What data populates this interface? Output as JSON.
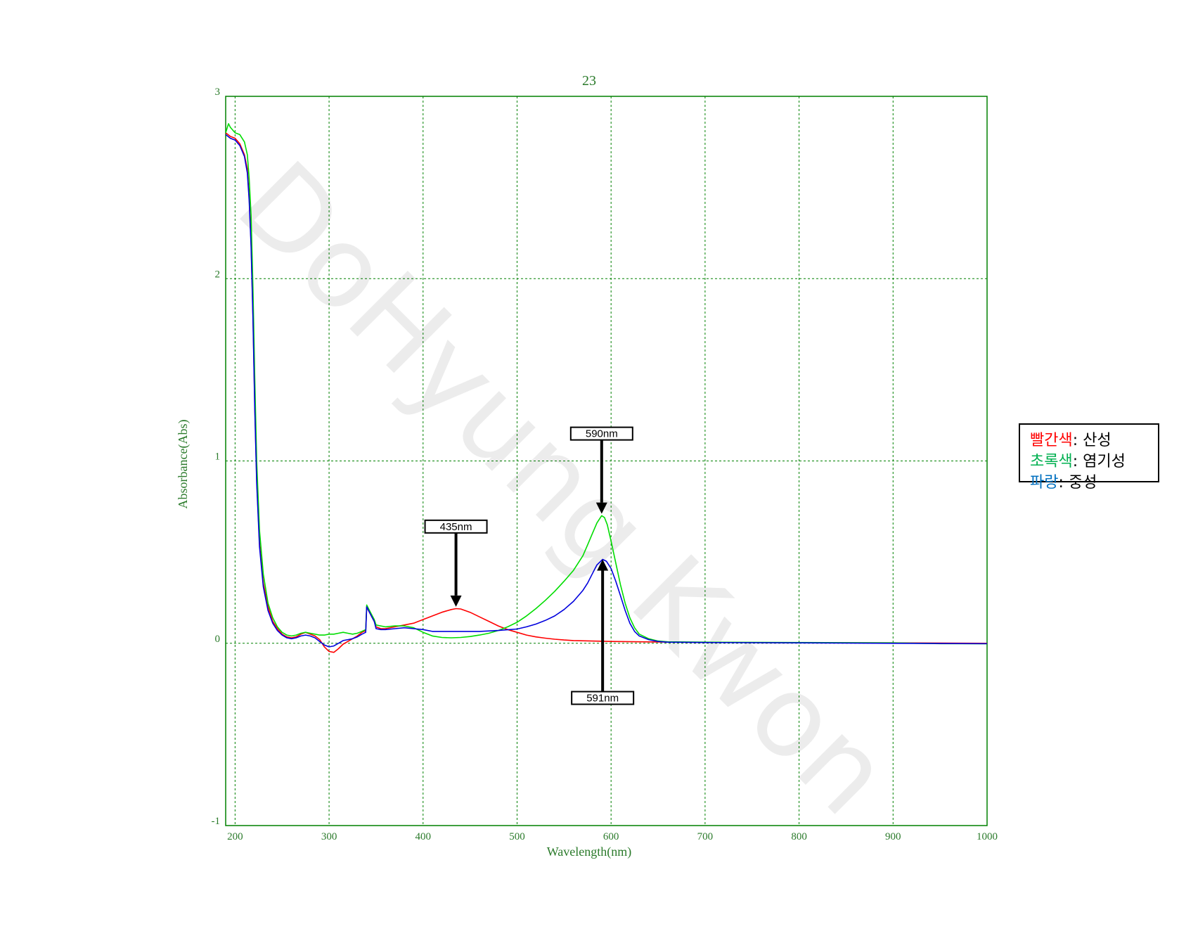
{
  "watermark": "DoHyung Kwon",
  "legend": [
    {
      "label": "빨간색",
      "desc": ": 산성",
      "color": "#ff0000"
    },
    {
      "label": "초록색",
      "desc": ": 염기성",
      "color": "#00b050"
    },
    {
      "label": "파랑",
      "desc": ": 중성",
      "color": "#0070c0"
    }
  ],
  "chart_data": {
    "type": "line",
    "title": "23",
    "xlabel": "Wavelength(nm)",
    "ylabel": "Absorbance(Abs)",
    "xlim": [
      190,
      1000
    ],
    "ylim": [
      -1,
      3
    ],
    "xticks": [
      200,
      300,
      400,
      500,
      600,
      700,
      800,
      900,
      1000
    ],
    "yticks": [
      -1,
      0,
      1,
      2,
      3
    ],
    "grid": true,
    "series": [
      {
        "color": "#ff0000",
        "points": [
          [
            190,
            2.8
          ],
          [
            195,
            2.78
          ],
          [
            200,
            2.77
          ],
          [
            205,
            2.74
          ],
          [
            210,
            2.68
          ],
          [
            213,
            2.6
          ],
          [
            215,
            2.45
          ],
          [
            217,
            2.2
          ],
          [
            219,
            1.8
          ],
          [
            221,
            1.3
          ],
          [
            223,
            0.9
          ],
          [
            226,
            0.55
          ],
          [
            230,
            0.33
          ],
          [
            235,
            0.2
          ],
          [
            240,
            0.12
          ],
          [
            245,
            0.08
          ],
          [
            250,
            0.05
          ],
          [
            255,
            0.035
          ],
          [
            260,
            0.03
          ],
          [
            265,
            0.035
          ],
          [
            270,
            0.05
          ],
          [
            275,
            0.06
          ],
          [
            280,
            0.05
          ],
          [
            285,
            0.04
          ],
          [
            290,
            0.02
          ],
          [
            295,
            -0.02
          ],
          [
            300,
            -0.045
          ],
          [
            305,
            -0.05
          ],
          [
            310,
            -0.03
          ],
          [
            315,
            -0.005
          ],
          [
            320,
            0.01
          ],
          [
            325,
            0.025
          ],
          [
            330,
            0.04
          ],
          [
            335,
            0.06
          ],
          [
            339,
            0.07
          ],
          [
            340,
            0.2
          ],
          [
            342,
            0.18
          ],
          [
            345,
            0.15
          ],
          [
            348,
            0.12
          ],
          [
            350,
            0.09
          ],
          [
            355,
            0.08
          ],
          [
            360,
            0.08
          ],
          [
            370,
            0.09
          ],
          [
            380,
            0.1
          ],
          [
            390,
            0.11
          ],
          [
            400,
            0.13
          ],
          [
            410,
            0.15
          ],
          [
            420,
            0.17
          ],
          [
            430,
            0.185
          ],
          [
            435,
            0.19
          ],
          [
            440,
            0.188
          ],
          [
            450,
            0.17
          ],
          [
            460,
            0.145
          ],
          [
            470,
            0.12
          ],
          [
            480,
            0.095
          ],
          [
            490,
            0.075
          ],
          [
            500,
            0.06
          ],
          [
            510,
            0.045
          ],
          [
            520,
            0.035
          ],
          [
            530,
            0.028
          ],
          [
            540,
            0.022
          ],
          [
            550,
            0.018
          ],
          [
            560,
            0.015
          ],
          [
            580,
            0.012
          ],
          [
            600,
            0.01
          ],
          [
            650,
            0.007
          ],
          [
            700,
            0.005
          ],
          [
            800,
            0.003
          ],
          [
            900,
            0.002
          ],
          [
            1000,
            0.0
          ]
        ]
      },
      {
        "color": "#00dd00",
        "points": [
          [
            190,
            2.8
          ],
          [
            193,
            2.85
          ],
          [
            195,
            2.83
          ],
          [
            200,
            2.8
          ],
          [
            205,
            2.79
          ],
          [
            210,
            2.75
          ],
          [
            213,
            2.68
          ],
          [
            215,
            2.55
          ],
          [
            217,
            2.35
          ],
          [
            219,
            1.95
          ],
          [
            221,
            1.45
          ],
          [
            223,
            1.0
          ],
          [
            226,
            0.62
          ],
          [
            230,
            0.38
          ],
          [
            235,
            0.22
          ],
          [
            240,
            0.14
          ],
          [
            245,
            0.09
          ],
          [
            250,
            0.06
          ],
          [
            255,
            0.045
          ],
          [
            260,
            0.04
          ],
          [
            265,
            0.045
          ],
          [
            270,
            0.055
          ],
          [
            275,
            0.06
          ],
          [
            280,
            0.055
          ],
          [
            285,
            0.05
          ],
          [
            290,
            0.045
          ],
          [
            295,
            0.045
          ],
          [
            300,
            0.05
          ],
          [
            305,
            0.05
          ],
          [
            310,
            0.055
          ],
          [
            315,
            0.06
          ],
          [
            320,
            0.055
          ],
          [
            325,
            0.05
          ],
          [
            330,
            0.055
          ],
          [
            335,
            0.065
          ],
          [
            339,
            0.075
          ],
          [
            340,
            0.21
          ],
          [
            342,
            0.19
          ],
          [
            345,
            0.16
          ],
          [
            348,
            0.13
          ],
          [
            350,
            0.1
          ],
          [
            355,
            0.095
          ],
          [
            360,
            0.09
          ],
          [
            370,
            0.095
          ],
          [
            380,
            0.095
          ],
          [
            390,
            0.085
          ],
          [
            400,
            0.06
          ],
          [
            410,
            0.04
          ],
          [
            420,
            0.032
          ],
          [
            430,
            0.03
          ],
          [
            440,
            0.032
          ],
          [
            450,
            0.037
          ],
          [
            460,
            0.045
          ],
          [
            470,
            0.055
          ],
          [
            480,
            0.07
          ],
          [
            490,
            0.09
          ],
          [
            500,
            0.115
          ],
          [
            510,
            0.15
          ],
          [
            520,
            0.19
          ],
          [
            530,
            0.235
          ],
          [
            540,
            0.285
          ],
          [
            550,
            0.34
          ],
          [
            560,
            0.4
          ],
          [
            570,
            0.48
          ],
          [
            575,
            0.54
          ],
          [
            580,
            0.6
          ],
          [
            585,
            0.66
          ],
          [
            590,
            0.7
          ],
          [
            593,
            0.69
          ],
          [
            596,
            0.65
          ],
          [
            600,
            0.56
          ],
          [
            605,
            0.44
          ],
          [
            610,
            0.32
          ],
          [
            615,
            0.22
          ],
          [
            620,
            0.14
          ],
          [
            625,
            0.085
          ],
          [
            630,
            0.05
          ],
          [
            640,
            0.025
          ],
          [
            650,
            0.012
          ],
          [
            660,
            0.008
          ],
          [
            700,
            0.006
          ],
          [
            800,
            0.004
          ],
          [
            900,
            0.002
          ],
          [
            950,
            -0.002
          ],
          [
            1000,
            -0.003
          ]
        ]
      },
      {
        "color": "#0000dd",
        "points": [
          [
            190,
            2.79
          ],
          [
            195,
            2.77
          ],
          [
            200,
            2.76
          ],
          [
            205,
            2.73
          ],
          [
            210,
            2.67
          ],
          [
            213,
            2.58
          ],
          [
            215,
            2.43
          ],
          [
            217,
            2.18
          ],
          [
            219,
            1.78
          ],
          [
            221,
            1.28
          ],
          [
            223,
            0.88
          ],
          [
            226,
            0.53
          ],
          [
            230,
            0.31
          ],
          [
            235,
            0.18
          ],
          [
            240,
            0.11
          ],
          [
            245,
            0.07
          ],
          [
            250,
            0.045
          ],
          [
            255,
            0.03
          ],
          [
            260,
            0.025
          ],
          [
            265,
            0.03
          ],
          [
            270,
            0.04
          ],
          [
            275,
            0.045
          ],
          [
            280,
            0.04
          ],
          [
            285,
            0.03
          ],
          [
            290,
            0.01
          ],
          [
            295,
            -0.01
          ],
          [
            300,
            -0.02
          ],
          [
            305,
            -0.015
          ],
          [
            310,
            0.0
          ],
          [
            315,
            0.015
          ],
          [
            320,
            0.02
          ],
          [
            325,
            0.025
          ],
          [
            330,
            0.035
          ],
          [
            335,
            0.05
          ],
          [
            339,
            0.06
          ],
          [
            340,
            0.2
          ],
          [
            342,
            0.18
          ],
          [
            345,
            0.15
          ],
          [
            348,
            0.12
          ],
          [
            350,
            0.08
          ],
          [
            355,
            0.075
          ],
          [
            360,
            0.075
          ],
          [
            370,
            0.08
          ],
          [
            380,
            0.085
          ],
          [
            390,
            0.08
          ],
          [
            400,
            0.075
          ],
          [
            410,
            0.065
          ],
          [
            420,
            0.065
          ],
          [
            440,
            0.065
          ],
          [
            460,
            0.065
          ],
          [
            480,
            0.07
          ],
          [
            500,
            0.078
          ],
          [
            510,
            0.09
          ],
          [
            520,
            0.105
          ],
          [
            530,
            0.125
          ],
          [
            540,
            0.15
          ],
          [
            550,
            0.185
          ],
          [
            560,
            0.23
          ],
          [
            570,
            0.29
          ],
          [
            575,
            0.33
          ],
          [
            580,
            0.38
          ],
          [
            585,
            0.43
          ],
          [
            591,
            0.46
          ],
          [
            595,
            0.45
          ],
          [
            600,
            0.41
          ],
          [
            605,
            0.34
          ],
          [
            610,
            0.26
          ],
          [
            615,
            0.18
          ],
          [
            620,
            0.11
          ],
          [
            625,
            0.065
          ],
          [
            630,
            0.04
          ],
          [
            640,
            0.02
          ],
          [
            650,
            0.01
          ],
          [
            660,
            0.006
          ],
          [
            700,
            0.004
          ],
          [
            800,
            0.002
          ],
          [
            900,
            0.0
          ],
          [
            1000,
            -0.002
          ]
        ]
      }
    ],
    "annotations": [
      {
        "text": "435nm",
        "x": 435,
        "label_y": 0.64,
        "arrow_to": 0.2,
        "direction": "down"
      },
      {
        "text": "590nm",
        "x": 590,
        "label_y": 1.15,
        "arrow_to": 0.71,
        "direction": "down"
      },
      {
        "text": "591nm",
        "x": 591,
        "label_y": -0.3,
        "arrow_to": 0.46,
        "direction": "up"
      }
    ]
  }
}
